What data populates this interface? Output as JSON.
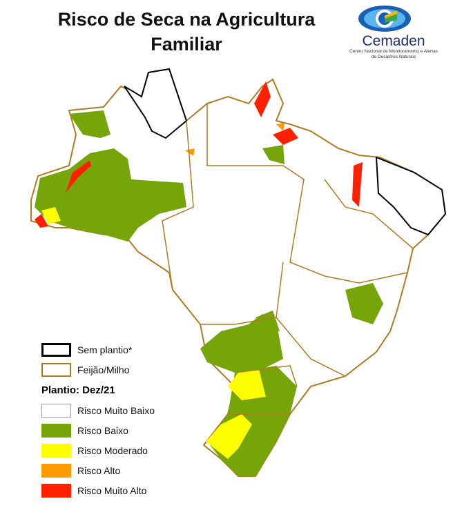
{
  "title": "Risco de Seca na Agricultura Familiar",
  "logo": {
    "name": "Cemaden",
    "subtitle": "Centro Nacional de Monitoramento e Alertas de Desastres Naturais"
  },
  "legend": {
    "boundaries": [
      {
        "label": "Sem plantio*",
        "color": "#000000"
      },
      {
        "label": "Feijão/Milho",
        "color": "#b07a1e"
      }
    ],
    "heading": "Plantio: Dez/21",
    "classes": [
      {
        "label": "Risco Muito Baixo",
        "color": "#ffffff"
      },
      {
        "label": "Risco Baixo",
        "color": "#76a50a"
      },
      {
        "label": "Risco Moderado",
        "color": "#ffff00"
      },
      {
        "label": "Risco Alto",
        "color": "#ff9900"
      },
      {
        "label": "Risco Muito Alto",
        "color": "#ff2000"
      }
    ]
  }
}
